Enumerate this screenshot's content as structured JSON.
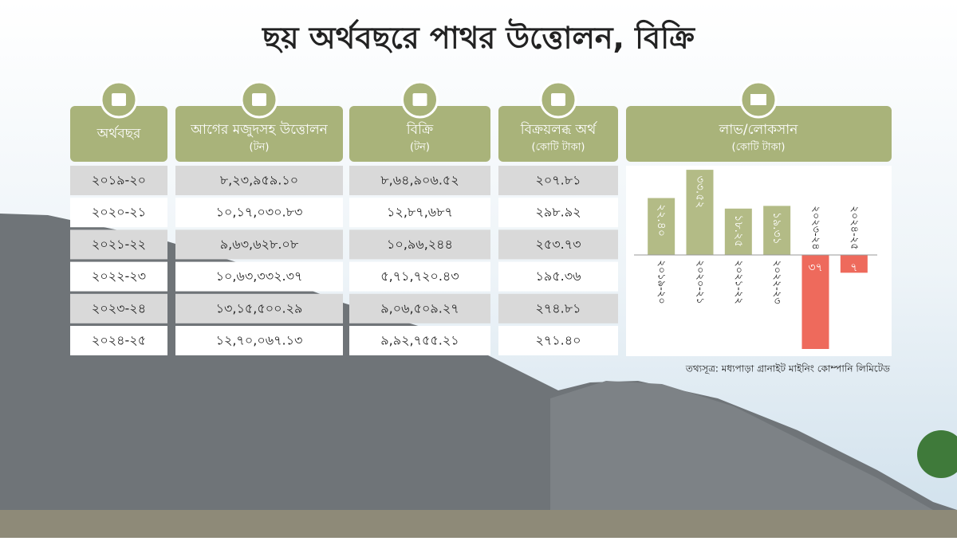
{
  "title": "ছয় অর্থবছরে পাথর উত্তোলন, বিক্রি",
  "table": {
    "headers": [
      {
        "label": "অর্থবছর"
      },
      {
        "label": "আগের মজুদসহ উত্তোলন",
        "unit": "(টন)"
      },
      {
        "label": "বিক্রি",
        "unit": "(টন)"
      },
      {
        "label": "বিক্রয়লব্ধ অর্থ",
        "unit": "(কোটি টাকা)"
      }
    ],
    "rows": [
      [
        "২০১৯-২০",
        "৮,২৩,৯৫৯.১০",
        "৮,৬৪,৯০৬.৫২",
        "২০৭.৮১"
      ],
      [
        "২০২০-২১",
        "১০,১৭,০৩০.৮৩",
        "১২,৮৭,৬৮৭",
        "২৯৮.৯২"
      ],
      [
        "২০২১-২২",
        "৯,৬৩,৬২৮.০৮",
        "১০,৯৬,২৪৪",
        "২৫৩.৭৩"
      ],
      [
        "২০২২-২৩",
        "১০,৬৩,৩৩২.৩৭",
        "৫,৭১,৭২০.৪৩",
        "১৯৫.৩৬"
      ],
      [
        "২০২৩-২৪",
        "১৩,১৫,৫০০.২৯",
        "৯,০৬,৫০৯.২৭",
        "২৭৪.৮১"
      ],
      [
        "২০২৪-২৫",
        "১২,৭০,০৬৭.১৩",
        "৯,৯২,৭৫৫.২১",
        "২৭১.৪০"
      ]
    ]
  },
  "chart_data": {
    "type": "bar",
    "title": "লাভ/লোকসান",
    "subtitle": "(কোটি টাকা)",
    "categories": [
      "২০১৯-২০",
      "২০২০-২১",
      "২০২১-২২",
      "২০২২-২৩",
      "২০২৩-২৪",
      "২০২৪-২৫"
    ],
    "values": [
      22.4,
      33.52,
      18.25,
      19.31,
      -37,
      -7
    ],
    "value_labels": [
      "২২.৪০",
      "৩৩.৫২",
      "১৮.২৫",
      "১৯.৩১",
      "৩৭",
      "৭"
    ],
    "positive_color": "#b3bb86",
    "negative_color": "#ee6a5c"
  },
  "source": "তথ্যসূত্র: মধ্যপাড়া গ্রানাইট মাইনিং কোম্পানি লিমিটেড"
}
